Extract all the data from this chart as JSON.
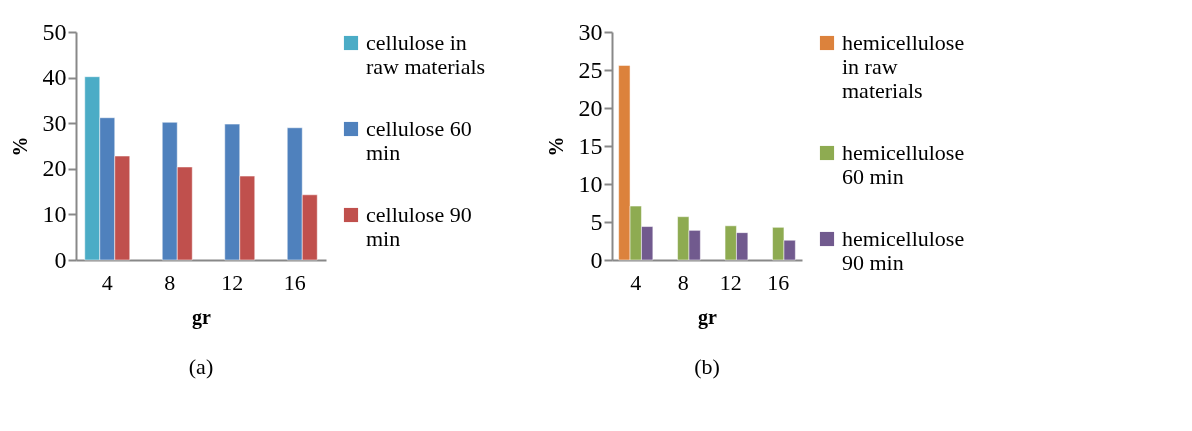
{
  "chart_data": [
    {
      "type": "bar",
      "categories": [
        "4",
        "8",
        "12",
        "16"
      ],
      "xlabel": "gr",
      "ylabel": "%",
      "ylim": [
        0,
        50
      ],
      "yticks": [
        0,
        10,
        20,
        30,
        40,
        50
      ],
      "legend": "right",
      "annotations": [
        "(a)"
      ],
      "series": [
        {
          "name": "cellulose in raw materials",
          "color": "#4bacc6",
          "values": [
            40.2,
            null,
            null,
            null
          ]
        },
        {
          "name": "cellulose 60 min",
          "color": "#4f81bd",
          "values": [
            31.2,
            30.2,
            29.8,
            29.0
          ]
        },
        {
          "name": "cellulose 90 min",
          "color": "#c0504d",
          "values": [
            22.8,
            20.4,
            18.4,
            14.3
          ]
        }
      ]
    },
    {
      "type": "bar",
      "categories": [
        "4",
        "8",
        "12",
        "16"
      ],
      "xlabel": "gr",
      "ylabel": "%",
      "ylim": [
        0,
        30
      ],
      "yticks": [
        0,
        5,
        10,
        15,
        20,
        25,
        30
      ],
      "legend": "right",
      "annotations": [
        "(b)"
      ],
      "series": [
        {
          "name": "hemicellulose in raw materials",
          "color": "#dc823c",
          "values": [
            25.6,
            null,
            null,
            null
          ]
        },
        {
          "name": "hemicellulose 60 min",
          "color": "#8eab51",
          "values": [
            7.1,
            5.7,
            4.5,
            4.3
          ]
        },
        {
          "name": "hemicellulose 90 min",
          "color": "#715a8e",
          "values": [
            4.4,
            3.9,
            3.6,
            2.6
          ]
        }
      ]
    }
  ]
}
